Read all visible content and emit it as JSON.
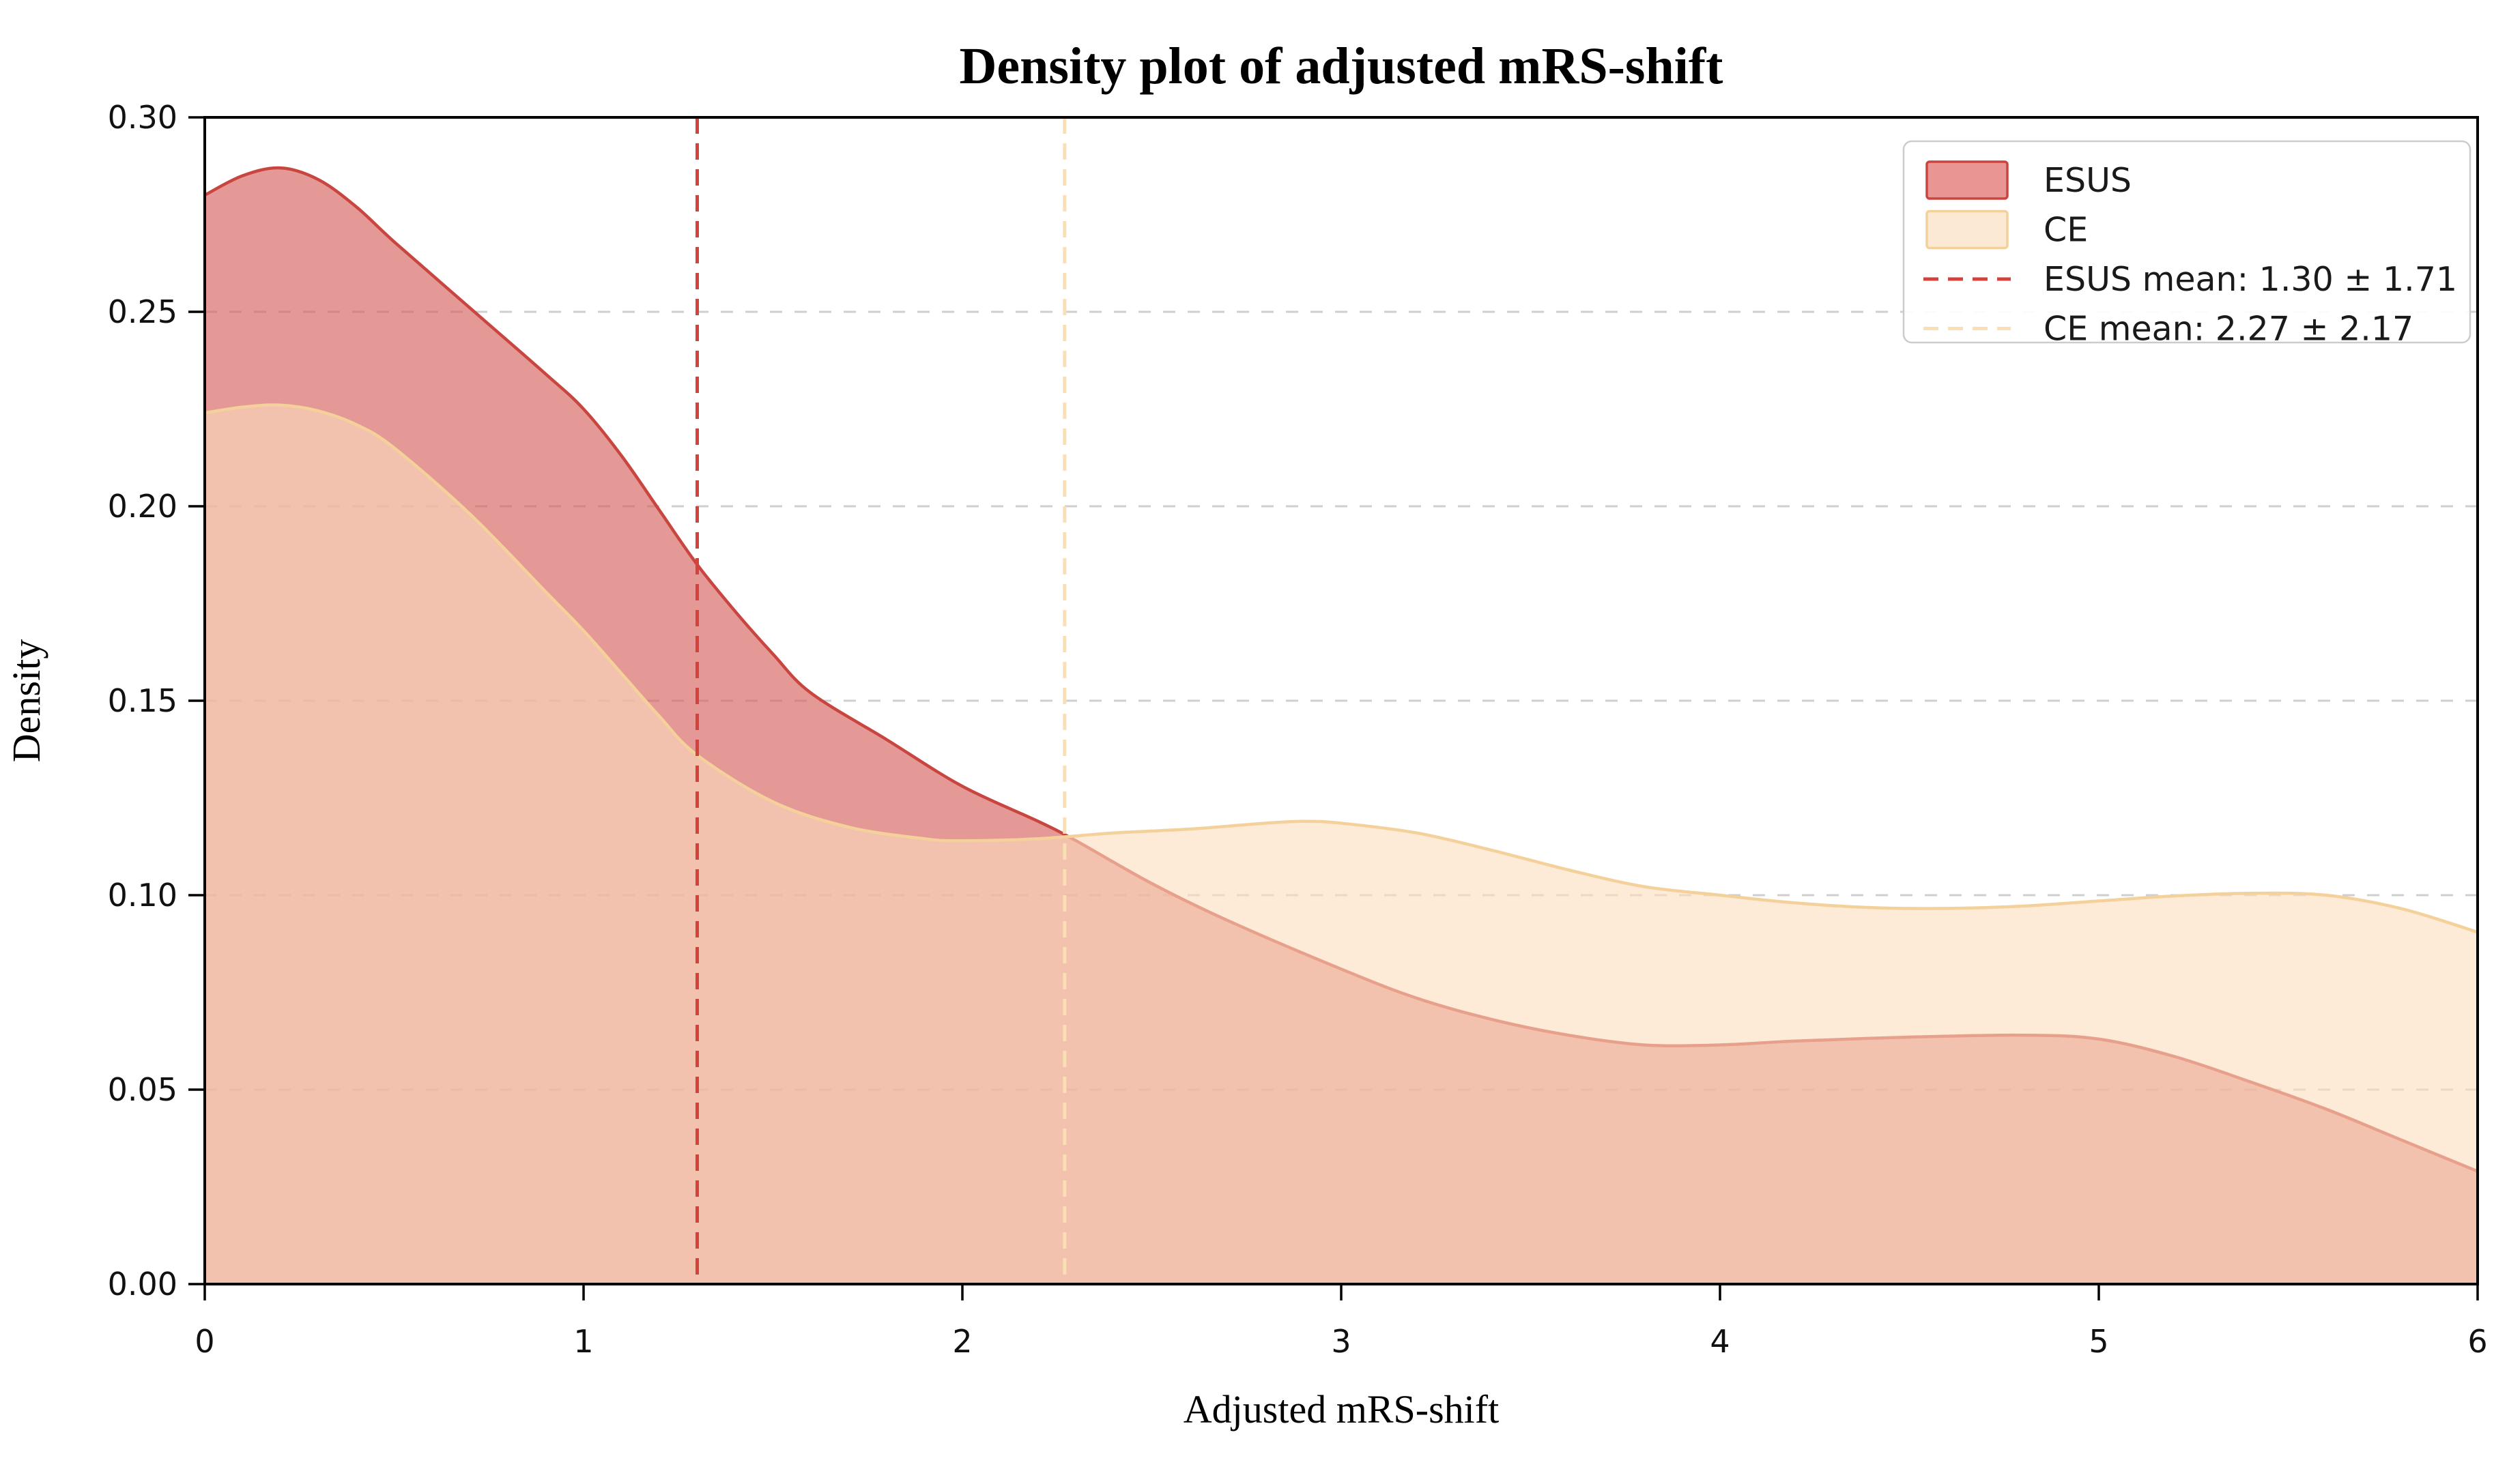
{
  "chart_data": {
    "type": "area",
    "title": "Density plot of adjusted mRS-shift",
    "xlabel": "Adjusted mRS-shift",
    "ylabel": "Density",
    "xlim": [
      0,
      6
    ],
    "ylim": [
      0,
      0.3
    ],
    "grid": "horizontal dashed",
    "legend_position": "upper right",
    "x_tick_values": [
      0,
      1,
      2,
      3,
      4,
      5,
      6
    ],
    "x_tick_labels": [
      "0",
      "1",
      "2",
      "3",
      "4",
      "5",
      "6"
    ],
    "y_tick_values": [
      0,
      0.05,
      0.1,
      0.15,
      0.2,
      0.25,
      0.3
    ],
    "y_tick_labels": [
      "0.00",
      "0.05",
      "0.10",
      "0.15",
      "0.20",
      "0.25",
      "0.30"
    ],
    "series": [
      {
        "name": "ESUS",
        "fill": "rgba(214,98,94,0.65)",
        "stroke": "#C9453F",
        "x": [
          0,
          0.1,
          0.2,
          0.3,
          0.4,
          0.5,
          0.7,
          0.9,
          1.0,
          1.1,
          1.2,
          1.3,
          1.4,
          1.5,
          1.6,
          1.8,
          2.0,
          2.2,
          2.3,
          2.5,
          2.7,
          3.0,
          3.2,
          3.4,
          3.6,
          3.8,
          4.0,
          4.2,
          4.5,
          4.8,
          5.0,
          5.2,
          5.4,
          5.6,
          5.8,
          6.0
        ],
        "y": [
          0.28,
          0.285,
          0.287,
          0.284,
          0.277,
          0.268,
          0.251,
          0.234,
          0.225,
          0.213,
          0.199,
          0.185,
          0.173,
          0.162,
          0.152,
          0.14,
          0.128,
          0.119,
          0.114,
          0.103,
          0.0935,
          0.081,
          0.0735,
          0.068,
          0.064,
          0.0615,
          0.0615,
          0.0625,
          0.0635,
          0.064,
          0.063,
          0.0585,
          0.052,
          0.045,
          0.037,
          0.029
        ]
      },
      {
        "name": "CE",
        "fill": "rgba(251,221,190,0.60)",
        "stroke": "#F4D09B",
        "x": [
          0,
          0.1,
          0.2,
          0.3,
          0.4,
          0.5,
          0.7,
          0.9,
          1.0,
          1.1,
          1.2,
          1.3,
          1.5,
          1.7,
          1.9,
          2.0,
          2.2,
          2.4,
          2.6,
          2.8,
          2.9,
          3.0,
          3.2,
          3.4,
          3.6,
          3.8,
          4.0,
          4.2,
          4.4,
          4.6,
          4.8,
          5.0,
          5.2,
          5.4,
          5.6,
          5.8,
          6.0
        ],
        "y": [
          0.224,
          0.2255,
          0.226,
          0.2245,
          0.221,
          0.215,
          0.198,
          0.178,
          0.168,
          0.157,
          0.146,
          0.136,
          0.124,
          0.1175,
          0.1145,
          0.114,
          0.1145,
          0.116,
          0.117,
          0.1185,
          0.119,
          0.1185,
          0.116,
          0.1115,
          0.1065,
          0.1022,
          0.1,
          0.098,
          0.0968,
          0.0966,
          0.0972,
          0.0985,
          0.0998,
          0.1005,
          0.1,
          0.0965,
          0.0905
        ]
      }
    ],
    "mean_lines": [
      {
        "name": "ESUS",
        "x": 1.3,
        "color": "#D5423C",
        "label": "ESUS mean: 1.30 ± 1.71"
      },
      {
        "name": "CE",
        "x": 2.27,
        "color": "#FADFB5",
        "label": "CE mean: 2.27 ± 2.17"
      }
    ],
    "legend_items": [
      {
        "label": "ESUS",
        "swatch": "patch",
        "fill": "#E89594",
        "stroke": "#C9453F"
      },
      {
        "label": "CE",
        "swatch": "patch",
        "fill": "#FBE9D3",
        "stroke": "#F4D09B"
      },
      {
        "label": "ESUS mean: 1.30 ± 1.71",
        "swatch": "dashed-line",
        "stroke": "#D5423C"
      },
      {
        "label": "CE mean: 2.27 ± 2.17",
        "swatch": "dashed-line",
        "stroke": "#FADFB5"
      }
    ]
  },
  "colors": {
    "background": "#ffffff",
    "gridline": "#cfcfcf",
    "spine": "#000000",
    "esus_fill_on_white": "#E99695",
    "ce_fill_on_white": "#FCEBD8",
    "overlap_fill": "#F2CDB4"
  }
}
